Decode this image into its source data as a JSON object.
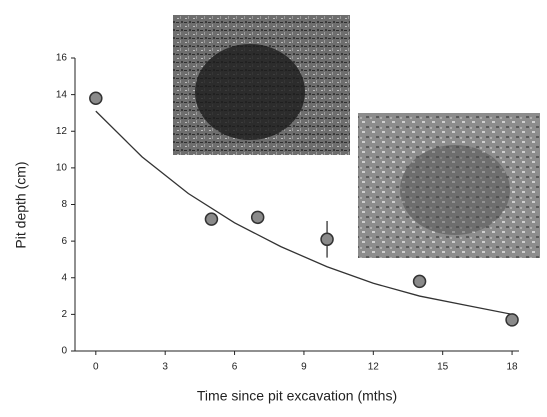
{
  "chart_data": {
    "type": "scatter",
    "x_label": "Time since pit excavation (mths)",
    "y_label": "Pit depth (cm)",
    "xlim": [
      -0.9,
      18.3
    ],
    "xticks": [
      0,
      3,
      6,
      9,
      12,
      15,
      18
    ],
    "ylim": [
      0,
      16
    ],
    "yticks": [
      0,
      2,
      4,
      6,
      8,
      10,
      12,
      14,
      16
    ],
    "series": [
      {
        "color": "#8a8a8a",
        "x": [
          0,
          5,
          7,
          10,
          14,
          18
        ],
        "values": [
          13.8,
          7.2,
          7.3,
          6.1,
          3.8,
          1.7
        ],
        "errors": [
          null,
          null,
          null,
          1.0,
          null,
          null
        ]
      }
    ],
    "fit": {
      "color": "#333333",
      "x": [
        0,
        2,
        4,
        6,
        8,
        10,
        12,
        14,
        16,
        18
      ],
      "values": [
        13.1,
        10.6,
        8.6,
        7.0,
        5.7,
        4.6,
        3.7,
        3.0,
        2.5,
        2.0
      ]
    }
  }
}
